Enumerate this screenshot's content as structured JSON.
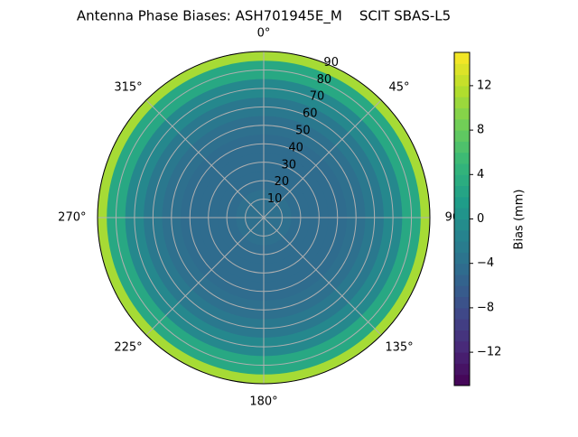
{
  "chart_data": {
    "type": "polar-contour",
    "title": "Antenna Phase Biases: ASH701945E_M    SCIT SBAS-L5",
    "radii": [
      0,
      10,
      20,
      30,
      40,
      50,
      60,
      70,
      80,
      90
    ],
    "values": [
      -4,
      -4,
      -4.5,
      -4.5,
      -4.5,
      -4,
      -3,
      -1,
      3,
      11
    ],
    "rlim": [
      0,
      90
    ],
    "rticks": [
      10,
      20,
      30,
      40,
      50,
      60,
      70,
      80,
      90
    ],
    "thetaticks": [
      {
        "value": 0,
        "label": "0°"
      },
      {
        "value": 45,
        "label": "45°"
      },
      {
        "value": 90,
        "label": "90°"
      },
      {
        "value": 135,
        "label": "135°"
      },
      {
        "value": 180,
        "label": "180°"
      },
      {
        "value": 225,
        "label": "225°"
      },
      {
        "value": 270,
        "label": "270°"
      },
      {
        "value": 315,
        "label": "315°"
      }
    ],
    "colorbar_label": "Bias (mm)",
    "clim": [
      -15,
      15
    ],
    "cticks": [
      {
        "value": -12,
        "label": "−12"
      },
      {
        "value": -8,
        "label": "−8"
      },
      {
        "value": -4,
        "label": "−4"
      },
      0,
      4,
      8,
      12
    ],
    "colormap": "viridis",
    "grid": true
  }
}
